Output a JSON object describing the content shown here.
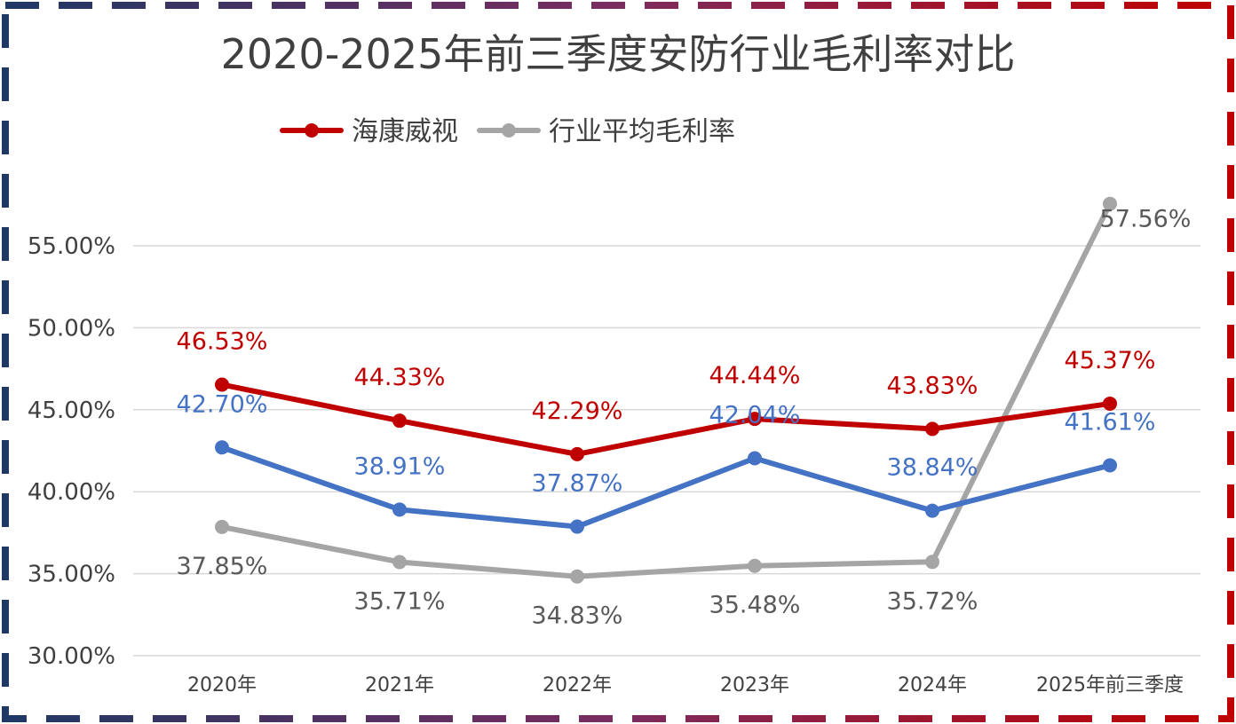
{
  "chart_data": {
    "type": "line",
    "title": "2020-2025年前三季度安防行业毛利率对比",
    "categories": [
      "2020年",
      "2021年",
      "2022年",
      "2023年",
      "2024年",
      "2025年前三季度"
    ],
    "ylim": [
      30,
      57.5
    ],
    "yticks": [
      30,
      35,
      40,
      45,
      50,
      55
    ],
    "ytick_labels": [
      "30.00%",
      "35.00%",
      "40.00%",
      "45.00%",
      "50.00%",
      "55.00%"
    ],
    "grid": true,
    "legend_position": "top",
    "series": [
      {
        "name": "海康威视",
        "color": "#c00000",
        "values": [
          46.53,
          44.33,
          42.29,
          44.44,
          43.83,
          45.37
        ],
        "labels": [
          "46.53%",
          "44.33%",
          "42.29%",
          "44.44%",
          "43.83%",
          "45.37%"
        ],
        "label_position": "above",
        "in_legend": true
      },
      {
        "name": "",
        "color": "#4472c4",
        "values": [
          42.7,
          38.91,
          37.87,
          42.04,
          38.84,
          41.61
        ],
        "labels": [
          "42.70%",
          "38.91%",
          "37.87%",
          "42.04%",
          "38.84%",
          "41.61%"
        ],
        "label_position": "above",
        "in_legend": false
      },
      {
        "name": "行业平均毛利率",
        "color": "#a5a5a5",
        "values": [
          37.85,
          35.71,
          34.83,
          35.48,
          35.72,
          57.56
        ],
        "labels": [
          "37.85%",
          "35.71%",
          "34.83%",
          "35.48%",
          "35.72%",
          "57.56%"
        ],
        "label_position": "below",
        "in_legend": true
      }
    ],
    "label_color_gray": "#595959",
    "border_colors": [
      "#1f3864",
      "#7b2c5f",
      "#c00000"
    ]
  }
}
